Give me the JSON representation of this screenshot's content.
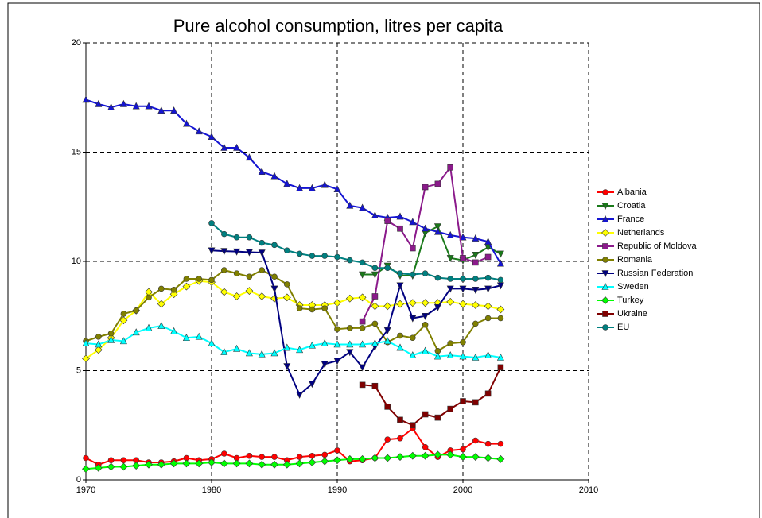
{
  "chart_data": {
    "type": "line",
    "title": "Pure alcohol consumption, litres per capita",
    "x": [
      1970,
      1971,
      1972,
      1973,
      1974,
      1975,
      1976,
      1977,
      1978,
      1979,
      1980,
      1981,
      1982,
      1983,
      1984,
      1985,
      1986,
      1987,
      1988,
      1989,
      1990,
      1991,
      1992,
      1993,
      1994,
      1995,
      1996,
      1997,
      1998,
      1999,
      2000,
      2001,
      2002,
      2003
    ],
    "xlim": [
      1970,
      2010
    ],
    "xticks": [
      1970,
      1980,
      1990,
      2000,
      2010
    ],
    "ylim": [
      0,
      20
    ],
    "yticks": [
      0,
      5,
      10,
      15,
      20
    ],
    "grid": true,
    "legend": "right",
    "series": [
      {
        "name": "Albania",
        "color": "#ff0000",
        "marker": "circle",
        "values": [
          1.0,
          0.7,
          0.9,
          0.9,
          0.9,
          0.8,
          0.8,
          0.85,
          1.0,
          0.9,
          0.95,
          1.2,
          1.0,
          1.1,
          1.05,
          1.05,
          0.9,
          1.05,
          1.1,
          1.15,
          1.35,
          0.85,
          0.9,
          1.0,
          1.85,
          1.9,
          2.35,
          1.5,
          1.05,
          1.35,
          1.4,
          1.8,
          1.65,
          1.65
        ]
      },
      {
        "name": "Croatia",
        "color": "#1a7a1a",
        "marker": "triangle-down",
        "values": [
          null,
          null,
          null,
          null,
          null,
          null,
          null,
          null,
          null,
          null,
          null,
          null,
          null,
          null,
          null,
          null,
          null,
          null,
          null,
          null,
          null,
          null,
          9.4,
          9.4,
          9.8,
          9.35,
          9.35,
          11.3,
          11.6,
          10.15,
          10.05,
          10.3,
          10.65,
          10.35
        ]
      },
      {
        "name": "France",
        "color": "#1414d2",
        "marker": "triangle-up",
        "values": [
          17.4,
          17.2,
          17.05,
          17.2,
          17.1,
          17.1,
          16.9,
          16.9,
          16.3,
          15.95,
          15.7,
          15.2,
          15.2,
          14.75,
          14.1,
          13.9,
          13.55,
          13.35,
          13.35,
          13.5,
          13.3,
          12.55,
          12.45,
          12.1,
          12.0,
          12.05,
          11.8,
          11.5,
          11.35,
          11.2,
          11.1,
          11.05,
          10.9,
          9.9
        ]
      },
      {
        "name": "Netherlands",
        "color": "#ffff00",
        "marker": "diamond",
        "values": [
          5.55,
          5.95,
          6.5,
          7.3,
          7.75,
          8.6,
          8.05,
          8.5,
          8.85,
          9.1,
          9.05,
          8.6,
          8.4,
          8.65,
          8.4,
          8.3,
          8.35,
          8.0,
          8.0,
          8.0,
          8.1,
          8.3,
          8.35,
          7.95,
          7.95,
          8.05,
          8.1,
          8.1,
          8.1,
          8.15,
          8.05,
          8.0,
          7.95,
          7.8
        ]
      },
      {
        "name": "Republic of Moldova",
        "color": "#8b1a8b",
        "marker": "square",
        "values": [
          null,
          null,
          null,
          null,
          null,
          null,
          null,
          null,
          null,
          null,
          null,
          null,
          null,
          null,
          null,
          null,
          null,
          null,
          null,
          null,
          null,
          null,
          7.25,
          8.4,
          11.85,
          11.5,
          10.6,
          13.4,
          13.55,
          14.3,
          10.15,
          9.95,
          10.2,
          null
        ]
      },
      {
        "name": "Romania",
        "color": "#808000",
        "marker": "circle",
        "values": [
          6.35,
          6.55,
          6.7,
          7.6,
          7.75,
          8.35,
          8.75,
          8.7,
          9.2,
          9.2,
          9.15,
          9.6,
          9.45,
          9.3,
          9.6,
          9.3,
          8.95,
          7.85,
          7.8,
          7.85,
          6.9,
          6.95,
          6.95,
          7.15,
          6.3,
          6.6,
          6.5,
          7.1,
          5.9,
          6.25,
          6.3,
          7.15,
          7.4,
          7.4
        ]
      },
      {
        "name": "Russian Federation",
        "color": "#000080",
        "marker": "triangle-down",
        "values": [
          null,
          null,
          null,
          null,
          null,
          null,
          null,
          null,
          null,
          null,
          10.5,
          10.47,
          10.45,
          10.42,
          10.4,
          8.75,
          5.2,
          3.9,
          4.4,
          5.3,
          5.45,
          5.85,
          5.15,
          6.1,
          6.85,
          8.9,
          7.4,
          7.5,
          7.9,
          8.75,
          8.75,
          8.7,
          8.75,
          8.9
        ]
      },
      {
        "name": "Sweden",
        "color": "#00ffff",
        "marker": "triangle-up",
        "values": [
          6.25,
          6.2,
          6.4,
          6.35,
          6.75,
          6.95,
          7.05,
          6.8,
          6.5,
          6.55,
          6.25,
          5.85,
          6.0,
          5.8,
          5.75,
          5.8,
          6.05,
          5.95,
          6.15,
          6.25,
          6.2,
          6.2,
          6.2,
          6.25,
          6.35,
          6.05,
          5.7,
          5.9,
          5.65,
          5.7,
          5.65,
          5.6,
          5.7,
          5.6
        ]
      },
      {
        "name": "Turkey",
        "color": "#00ff00",
        "marker": "diamond",
        "values": [
          0.5,
          0.55,
          0.6,
          0.6,
          0.65,
          0.7,
          0.7,
          0.75,
          0.75,
          0.75,
          0.8,
          0.75,
          0.75,
          0.75,
          0.7,
          0.7,
          0.7,
          0.75,
          0.8,
          0.85,
          0.9,
          0.95,
          0.95,
          1.0,
          1.0,
          1.05,
          1.1,
          1.1,
          1.15,
          1.15,
          1.05,
          1.05,
          1.0,
          0.95
        ]
      },
      {
        "name": "Ukraine",
        "color": "#800000",
        "marker": "square",
        "values": [
          null,
          null,
          null,
          null,
          null,
          null,
          null,
          null,
          null,
          null,
          null,
          null,
          null,
          null,
          null,
          null,
          null,
          null,
          null,
          null,
          null,
          null,
          4.35,
          4.3,
          3.35,
          2.75,
          2.5,
          3.0,
          2.85,
          3.25,
          3.6,
          3.55,
          3.95,
          5.15
        ]
      },
      {
        "name": "EU",
        "color": "#008080",
        "marker": "circle",
        "values": [
          null,
          null,
          null,
          null,
          null,
          null,
          null,
          null,
          null,
          null,
          11.75,
          11.25,
          11.1,
          11.1,
          10.85,
          10.75,
          10.5,
          10.35,
          10.25,
          10.25,
          10.2,
          10.05,
          9.95,
          9.7,
          9.7,
          9.45,
          9.4,
          9.45,
          9.25,
          9.2,
          9.2,
          9.2,
          9.25,
          9.15
        ]
      }
    ]
  }
}
